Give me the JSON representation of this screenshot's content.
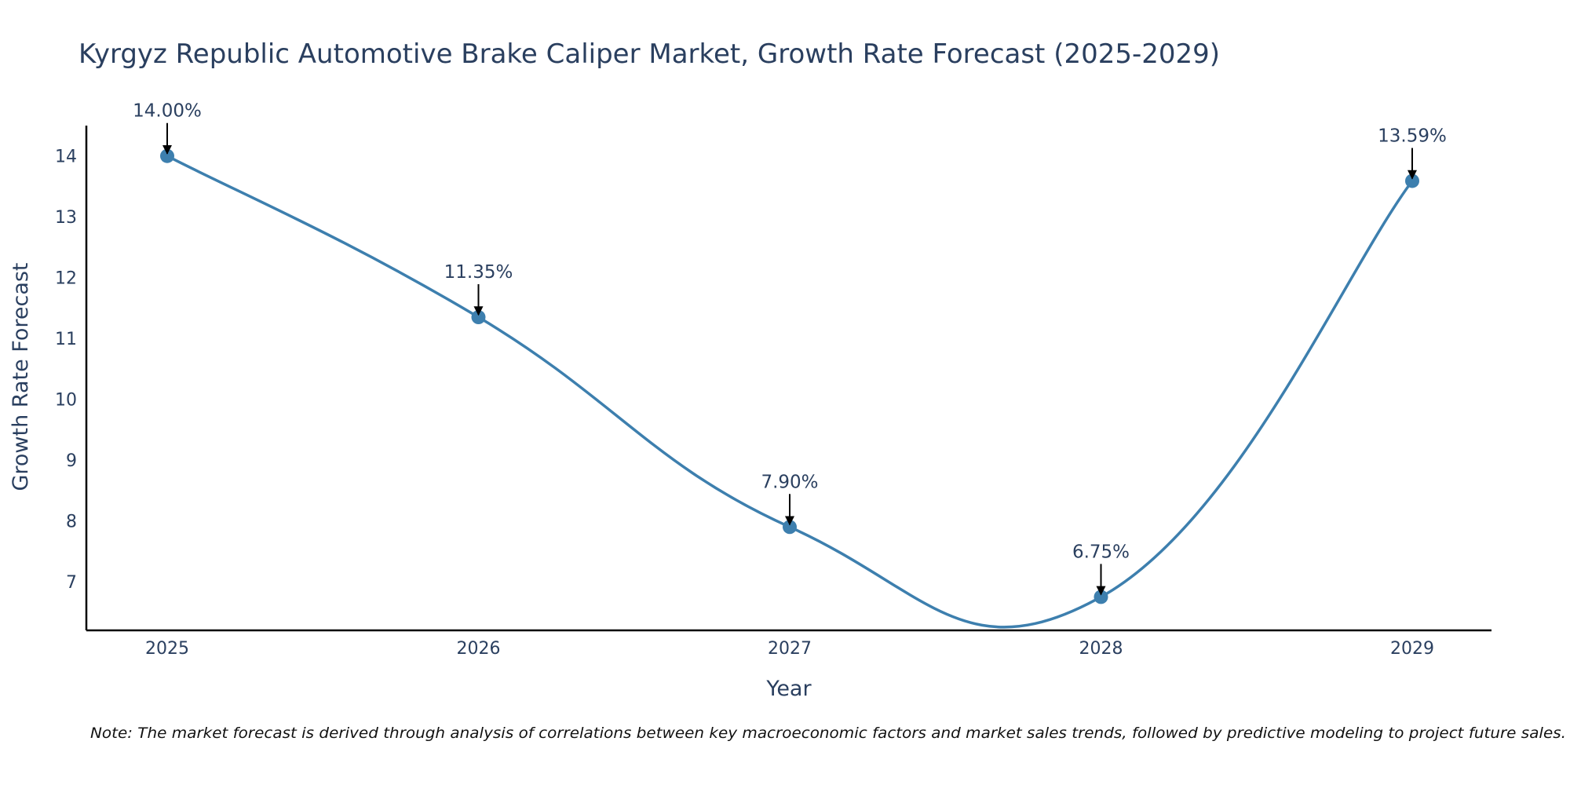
{
  "chart_data": {
    "type": "line",
    "title": "Kyrgyz Republic Automotive Brake Caliper Market, Growth Rate Forecast (2025-2029)",
    "xlabel": "Year",
    "ylabel": "Growth Rate Forecast",
    "categories": [
      "2025",
      "2026",
      "2027",
      "2028",
      "2029"
    ],
    "series": [
      {
        "name": "Growth Rate Forecast",
        "values": [
          14.0,
          11.35,
          7.9,
          6.75,
          13.59
        ]
      }
    ],
    "data_labels": [
      "14.00%",
      "11.35%",
      "7.90%",
      "6.75%",
      "13.59%"
    ],
    "y_ticks": [
      7,
      8,
      9,
      10,
      11,
      12,
      13,
      14
    ],
    "ylim": [
      6.2,
      14.5
    ],
    "grid": false,
    "line_color": "#3d7fae",
    "marker_color": "#3d7fae",
    "note": "Note: The market forecast is derived through analysis of correlations between key macroeconomic factors and market sales trends, followed by predictive modeling to project future sales."
  }
}
